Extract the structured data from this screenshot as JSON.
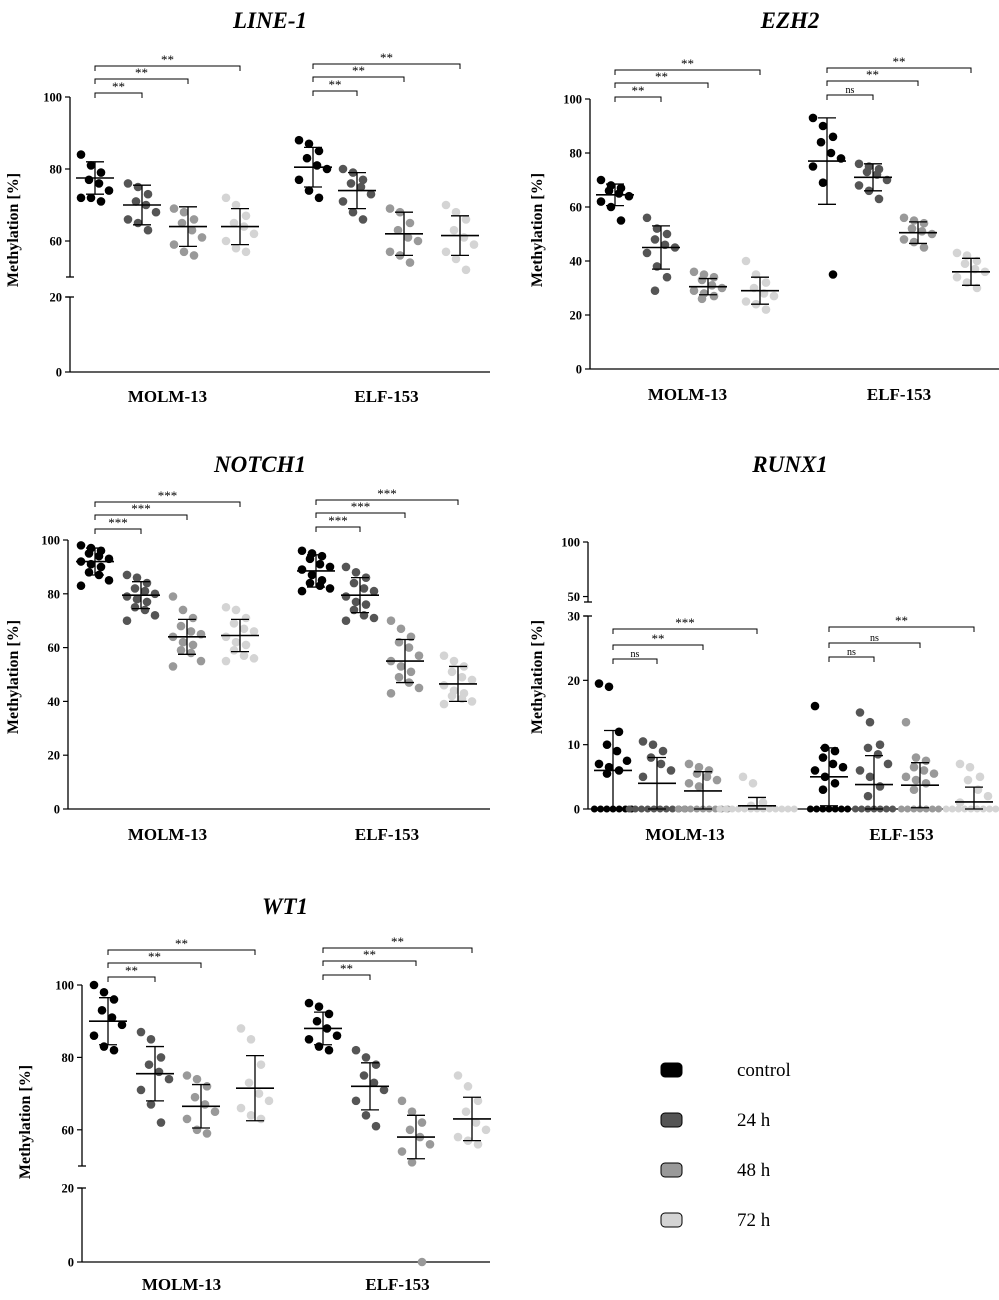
{
  "legend": {
    "items": [
      {
        "label": "control",
        "color": "#000000"
      },
      {
        "label": "24 h",
        "color": "#555555"
      },
      {
        "label": "48 h",
        "color": "#999999"
      },
      {
        "label": "72 h",
        "color": "#d4d4d4"
      }
    ]
  },
  "chart_data": [
    {
      "type": "scatter",
      "title": "LINE-1",
      "ylabel": "Methylation [%]",
      "groups": [
        "MOLM-13",
        "ELF-153"
      ],
      "axis_break": {
        "lower": [
          0,
          20
        ],
        "upper": [
          50,
          100
        ]
      },
      "yticks": [
        0,
        20,
        60,
        80,
        100
      ],
      "series": [
        {
          "name": "control",
          "group": "MOLM-13",
          "mean": 77.5,
          "sd": 4.5,
          "points": [
            84,
            81,
            79,
            77,
            76,
            74,
            72,
            72,
            71
          ]
        },
        {
          "name": "24 h",
          "group": "MOLM-13",
          "mean": 70,
          "sd": 5.5,
          "points": [
            76,
            75,
            73,
            71,
            70,
            68,
            66,
            65,
            63
          ]
        },
        {
          "name": "48 h",
          "group": "MOLM-13",
          "mean": 64,
          "sd": 5.5,
          "points": [
            69,
            68,
            66,
            65,
            63,
            61,
            59,
            57,
            56
          ]
        },
        {
          "name": "72 h",
          "group": "MOLM-13",
          "mean": 64,
          "sd": 5,
          "points": [
            72,
            70,
            67,
            65,
            64,
            62,
            60,
            58,
            57
          ]
        },
        {
          "name": "control",
          "group": "ELF-153",
          "mean": 80.5,
          "sd": 5.5,
          "points": [
            88,
            87,
            85,
            83,
            81,
            80,
            77,
            74,
            72
          ]
        },
        {
          "name": "24 h",
          "group": "ELF-153",
          "mean": 74,
          "sd": 5,
          "points": [
            80,
            79,
            77,
            76,
            75,
            73,
            71,
            68,
            66
          ]
        },
        {
          "name": "48 h",
          "group": "ELF-153",
          "mean": 62,
          "sd": 6,
          "points": [
            69,
            68,
            65,
            63,
            61,
            60,
            57,
            56,
            54
          ]
        },
        {
          "name": "72 h",
          "group": "ELF-153",
          "mean": 61.5,
          "sd": 5.5,
          "points": [
            70,
            68,
            66,
            63,
            61,
            59,
            57,
            55,
            52
          ]
        }
      ],
      "comparisons": [
        {
          "group": "MOLM-13",
          "from": "control",
          "to": "24 h",
          "label": "**"
        },
        {
          "group": "MOLM-13",
          "from": "control",
          "to": "48 h",
          "label": "**"
        },
        {
          "group": "MOLM-13",
          "from": "control",
          "to": "72 h",
          "label": "**"
        },
        {
          "group": "ELF-153",
          "from": "control",
          "to": "24 h",
          "label": "**"
        },
        {
          "group": "ELF-153",
          "from": "control",
          "to": "48 h",
          "label": "**"
        },
        {
          "group": "ELF-153",
          "from": "control",
          "to": "72 h",
          "label": "**"
        }
      ]
    },
    {
      "type": "scatter",
      "title": "EZH2",
      "ylabel": "Methylation [%]",
      "groups": [
        "MOLM-13",
        "ELF-153"
      ],
      "ylim": [
        0,
        100
      ],
      "yticks": [
        0,
        20,
        40,
        60,
        80,
        100
      ],
      "series": [
        {
          "name": "control",
          "group": "MOLM-13",
          "mean": 64.5,
          "sd": 4,
          "points": [
            70,
            68,
            67,
            66,
            65,
            64,
            62,
            60,
            55
          ]
        },
        {
          "name": "24 h",
          "group": "MOLM-13",
          "mean": 45,
          "sd": 8,
          "points": [
            56,
            52,
            50,
            48,
            46,
            45,
            43,
            38,
            34,
            29
          ]
        },
        {
          "name": "48 h",
          "group": "MOLM-13",
          "mean": 30.5,
          "sd": 3,
          "points": [
            36,
            35,
            34,
            33,
            31,
            30,
            29,
            28,
            27,
            26
          ]
        },
        {
          "name": "72 h",
          "group": "MOLM-13",
          "mean": 29,
          "sd": 5,
          "points": [
            40,
            35,
            32,
            30,
            28,
            27,
            25,
            24,
            22
          ]
        },
        {
          "name": "control",
          "group": "ELF-153",
          "mean": 77,
          "sd": 16,
          "points": [
            93,
            90,
            86,
            84,
            80,
            78,
            75,
            69,
            35
          ]
        },
        {
          "name": "24 h",
          "group": "ELF-153",
          "mean": 71,
          "sd": 5,
          "points": [
            76,
            75,
            74,
            73,
            72,
            70,
            68,
            66,
            63
          ]
        },
        {
          "name": "48 h",
          "group": "ELF-153",
          "mean": 50.5,
          "sd": 4,
          "points": [
            56,
            55,
            54,
            52,
            51,
            50,
            48,
            47,
            45
          ]
        },
        {
          "name": "72 h",
          "group": "ELF-153",
          "mean": 36,
          "sd": 5,
          "points": [
            43,
            42,
            40,
            39,
            37,
            36,
            34,
            32,
            30
          ]
        }
      ],
      "comparisons": [
        {
          "group": "MOLM-13",
          "from": "control",
          "to": "24 h",
          "label": "**"
        },
        {
          "group": "MOLM-13",
          "from": "control",
          "to": "48 h",
          "label": "**"
        },
        {
          "group": "MOLM-13",
          "from": "control",
          "to": "72 h",
          "label": "**"
        },
        {
          "group": "ELF-153",
          "from": "control",
          "to": "24 h",
          "label": "ns"
        },
        {
          "group": "ELF-153",
          "from": "control",
          "to": "48 h",
          "label": "**"
        },
        {
          "group": "ELF-153",
          "from": "control",
          "to": "72 h",
          "label": "**"
        }
      ]
    },
    {
      "type": "scatter",
      "title": "NOTCH1",
      "ylabel": "Methylation [%]",
      "groups": [
        "MOLM-13",
        "ELF-153"
      ],
      "ylim": [
        0,
        100
      ],
      "yticks": [
        0,
        20,
        40,
        60,
        80,
        100
      ],
      "series": [
        {
          "name": "control",
          "group": "MOLM-13",
          "mean": 92,
          "sd": 5,
          "points": [
            98,
            97,
            96,
            95,
            94,
            93,
            92,
            91,
            90,
            88,
            87,
            85,
            83
          ]
        },
        {
          "name": "24 h",
          "group": "MOLM-13",
          "mean": 79.5,
          "sd": 5,
          "points": [
            87,
            86,
            84,
            82,
            81,
            80,
            79,
            78,
            77,
            75,
            74,
            72,
            70
          ]
        },
        {
          "name": "48 h",
          "group": "MOLM-13",
          "mean": 64,
          "sd": 6.5,
          "points": [
            79,
            74,
            71,
            68,
            66,
            65,
            64,
            62,
            61,
            59,
            58,
            55,
            53
          ]
        },
        {
          "name": "72 h",
          "group": "MOLM-13",
          "mean": 64.5,
          "sd": 6,
          "points": [
            75,
            74,
            71,
            69,
            67,
            66,
            64,
            62,
            61,
            59,
            57,
            56,
            55
          ]
        },
        {
          "name": "control",
          "group": "ELF-153",
          "mean": 88.5,
          "sd": 6,
          "points": [
            96,
            95,
            94,
            93,
            91,
            90,
            89,
            87,
            85,
            84,
            83,
            82,
            81
          ]
        },
        {
          "name": "24 h",
          "group": "ELF-153",
          "mean": 79.5,
          "sd": 6.5,
          "points": [
            90,
            88,
            86,
            84,
            82,
            81,
            79,
            77,
            76,
            74,
            72,
            71,
            70
          ]
        },
        {
          "name": "48 h",
          "group": "ELF-153",
          "mean": 55,
          "sd": 8,
          "points": [
            70,
            67,
            64,
            62,
            60,
            57,
            55,
            53,
            51,
            49,
            47,
            45,
            43
          ]
        },
        {
          "name": "72 h",
          "group": "ELF-153",
          "mean": 46.5,
          "sd": 6.5,
          "points": [
            57,
            55,
            53,
            51,
            49,
            48,
            46,
            44,
            43,
            42,
            41,
            40,
            39
          ]
        }
      ],
      "comparisons": [
        {
          "group": "MOLM-13",
          "from": "control",
          "to": "24 h",
          "label": "***"
        },
        {
          "group": "MOLM-13",
          "from": "control",
          "to": "48 h",
          "label": "***"
        },
        {
          "group": "MOLM-13",
          "from": "control",
          "to": "72 h",
          "label": "***"
        },
        {
          "group": "ELF-153",
          "from": "control",
          "to": "24 h",
          "label": "***"
        },
        {
          "group": "ELF-153",
          "from": "control",
          "to": "48 h",
          "label": "***"
        },
        {
          "group": "ELF-153",
          "from": "control",
          "to": "72 h",
          "label": "***"
        }
      ]
    },
    {
      "type": "scatter",
      "title": "RUNX1",
      "ylabel": "Methylation [%]",
      "groups": [
        "MOLM-13",
        "ELF-153"
      ],
      "axis_break": {
        "lower": [
          0,
          30
        ],
        "upper": [
          45,
          100
        ]
      },
      "yticks": [
        0,
        10,
        20,
        30,
        50,
        100
      ],
      "series": [
        {
          "name": "control",
          "group": "MOLM-13",
          "mean": 6,
          "sd": 6.2,
          "points": [
            19.5,
            19,
            12,
            10,
            9,
            7.5,
            7,
            6.5,
            6,
            5.5,
            0,
            0,
            0,
            0,
            0,
            0,
            0
          ]
        },
        {
          "name": "24 h",
          "group": "MOLM-13",
          "mean": 4,
          "sd": 4,
          "points": [
            10.5,
            10,
            9,
            8,
            7,
            6,
            5,
            0,
            0,
            0,
            0,
            0,
            0,
            0,
            0,
            0,
            0
          ]
        },
        {
          "name": "48 h",
          "group": "MOLM-13",
          "mean": 2.8,
          "sd": 3,
          "points": [
            7,
            6.5,
            6,
            5.5,
            5,
            4.5,
            4,
            3.5,
            0,
            0,
            0,
            0,
            0,
            0,
            0,
            0,
            0
          ]
        },
        {
          "name": "72 h",
          "group": "MOLM-13",
          "mean": 0.5,
          "sd": 1.3,
          "points": [
            5,
            4,
            1,
            0.5,
            0,
            0,
            0,
            0,
            0,
            0,
            0,
            0,
            0,
            0,
            0,
            0,
            0
          ]
        },
        {
          "name": "control",
          "group": "ELF-153",
          "mean": 5,
          "sd": 4.5,
          "points": [
            16,
            9.5,
            9,
            8,
            7,
            6.5,
            6,
            5,
            4,
            3,
            0,
            0,
            0,
            0,
            0,
            0,
            0
          ]
        },
        {
          "name": "24 h",
          "group": "ELF-153",
          "mean": 3.8,
          "sd": 4.5,
          "points": [
            15,
            13.5,
            10,
            9.5,
            8.5,
            7,
            6,
            5,
            3.5,
            2,
            0,
            0,
            0,
            0,
            0,
            0,
            0
          ]
        },
        {
          "name": "48 h",
          "group": "ELF-153",
          "mean": 3.7,
          "sd": 3.5,
          "points": [
            13.5,
            8,
            7.5,
            6.5,
            6,
            5.5,
            5,
            4.5,
            4,
            3,
            0,
            0,
            0,
            0,
            0,
            0,
            0
          ]
        },
        {
          "name": "72 h",
          "group": "ELF-153",
          "mean": 1.1,
          "sd": 2.3,
          "points": [
            7,
            6.5,
            5,
            4.5,
            3,
            2,
            1,
            0,
            0,
            0,
            0,
            0,
            0,
            0,
            0,
            0,
            0
          ]
        }
      ],
      "comparisons": [
        {
          "group": "MOLM-13",
          "from": "control",
          "to": "24 h",
          "label": "ns"
        },
        {
          "group": "MOLM-13",
          "from": "control",
          "to": "48 h",
          "label": "**"
        },
        {
          "group": "MOLM-13",
          "from": "control",
          "to": "72 h",
          "label": "***"
        },
        {
          "group": "ELF-153",
          "from": "control",
          "to": "24 h",
          "label": "ns"
        },
        {
          "group": "ELF-153",
          "from": "control",
          "to": "48 h",
          "label": "ns"
        },
        {
          "group": "ELF-153",
          "from": "control",
          "to": "72 h",
          "label": "**"
        }
      ]
    },
    {
      "type": "scatter",
      "title": "WT1",
      "ylabel": "Methylation [%]",
      "groups": [
        "MOLM-13",
        "ELF-153"
      ],
      "axis_break": {
        "lower": [
          0,
          20
        ],
        "upper": [
          50,
          100
        ]
      },
      "yticks": [
        0,
        20,
        60,
        80,
        100
      ],
      "series": [
        {
          "name": "control",
          "group": "MOLM-13",
          "mean": 90,
          "sd": 6.5,
          "points": [
            100,
            98,
            96,
            93,
            91,
            89,
            86,
            83,
            82
          ]
        },
        {
          "name": "24 h",
          "group": "MOLM-13",
          "mean": 75.5,
          "sd": 7.5,
          "points": [
            87,
            85,
            80,
            78,
            76,
            74,
            71,
            67,
            62
          ]
        },
        {
          "name": "48 h",
          "group": "MOLM-13",
          "mean": 66.5,
          "sd": 6,
          "points": [
            75,
            74,
            72,
            69,
            67,
            65,
            63,
            60,
            59
          ]
        },
        {
          "name": "72 h",
          "group": "MOLM-13",
          "mean": 71.5,
          "sd": 9,
          "points": [
            88,
            85,
            78,
            73,
            70,
            68,
            66,
            64,
            63
          ]
        },
        {
          "name": "control",
          "group": "ELF-153",
          "mean": 88,
          "sd": 4.5,
          "points": [
            95,
            94,
            92,
            90,
            88,
            86,
            85,
            83,
            82
          ]
        },
        {
          "name": "24 h",
          "group": "ELF-153",
          "mean": 72,
          "sd": 6.5,
          "points": [
            82,
            80,
            78,
            75,
            73,
            71,
            68,
            64,
            61
          ]
        },
        {
          "name": "48 h",
          "group": "ELF-153",
          "mean": 58,
          "sd": 6,
          "points": [
            68,
            65,
            62,
            60,
            58,
            56,
            54,
            51,
            49
          ]
        },
        {
          "name": "72 h",
          "group": "ELF-153",
          "mean": 63,
          "sd": 6,
          "points": [
            75,
            72,
            68,
            65,
            62,
            60,
            58,
            57,
            56
          ]
        }
      ],
      "comparisons": [
        {
          "group": "MOLM-13",
          "from": "control",
          "to": "24 h",
          "label": "**"
        },
        {
          "group": "MOLM-13",
          "from": "control",
          "to": "48 h",
          "label": "**"
        },
        {
          "group": "MOLM-13",
          "from": "control",
          "to": "72 h",
          "label": "**"
        },
        {
          "group": "ELF-153",
          "from": "control",
          "to": "24 h",
          "label": "**"
        },
        {
          "group": "ELF-153",
          "from": "control",
          "to": "48 h",
          "label": "**"
        },
        {
          "group": "ELF-153",
          "from": "control",
          "to": "72 h",
          "label": "**"
        }
      ]
    }
  ]
}
